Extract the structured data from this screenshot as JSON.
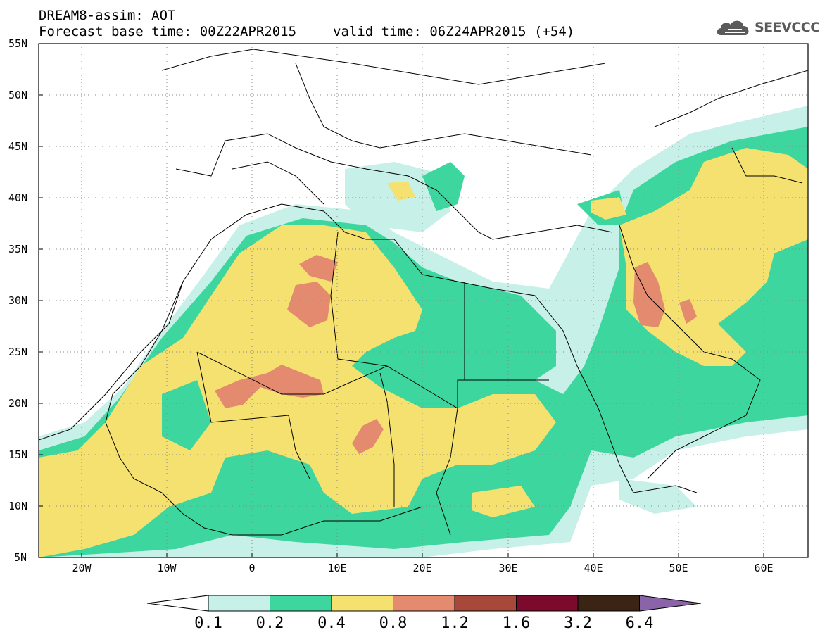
{
  "header": {
    "line1": "DREAM8-assim: AOT",
    "base_time": "Forecast base time: 00Z22APR2015",
    "valid_time": "valid time: 06Z24APR2015 (+54)"
  },
  "logo": {
    "text": "SEEVCCC",
    "icon": "cloud-icon"
  },
  "map": {
    "projection": "lat-lon",
    "lon_range": [
      -25,
      65
    ],
    "lat_range": [
      5,
      55
    ],
    "lat_ticks": [
      "55N",
      "50N",
      "45N",
      "40N",
      "35N",
      "30N",
      "25N",
      "20N",
      "15N",
      "10N",
      "5N"
    ],
    "lon_ticks": [
      "20W",
      "10W",
      "0",
      "10E",
      "20E",
      "30E",
      "40E",
      "50E",
      "60E"
    ],
    "grid": "dotted"
  },
  "colorbar": {
    "labels": [
      "0.1",
      "0.2",
      "0.4",
      "0.8",
      "1.2",
      "1.6",
      "3.2",
      "6.4"
    ],
    "colors": [
      "#ffffff",
      "#c6f0e8",
      "#3dd69e",
      "#f5e170",
      "#e48a6e",
      "#a8483a",
      "#7c0a2c",
      "#3c2414",
      "#8a64a8"
    ]
  },
  "chart_data": {
    "type": "heatmap",
    "variable": "AOT",
    "levels": [
      0.1,
      0.2,
      0.4,
      0.8,
      1.2,
      1.6,
      3.2,
      6.4
    ],
    "xlim": [
      -25,
      65
    ],
    "ylim": [
      5,
      55
    ]
  }
}
